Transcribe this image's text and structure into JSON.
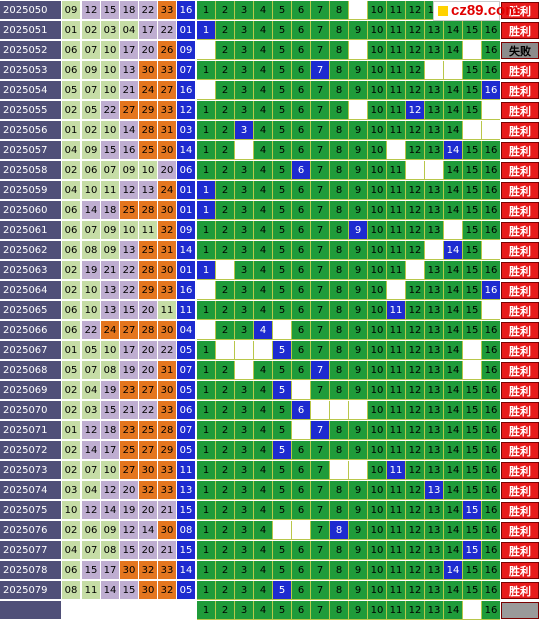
{
  "logo_text": "cz89.com",
  "colors": {
    "period_bg": "#4f4f78",
    "green": "#1f9b3a",
    "hit": "#1d2bd0",
    "win": "#e81b1b",
    "gridline": "#b9c74a"
  },
  "rows": [
    {
      "period": "2025050",
      "reds": [
        9,
        12,
        15,
        18,
        22,
        33
      ],
      "blue": 16,
      "hit": null,
      "blanks": [
        9
      ],
      "result": "胜利"
    },
    {
      "period": "2025051",
      "reds": [
        1,
        2,
        3,
        4,
        17,
        22
      ],
      "blue": 1,
      "hit": 1,
      "blanks": [],
      "result": "胜利"
    },
    {
      "period": "2025052",
      "reds": [
        6,
        7,
        10,
        17,
        20,
        26
      ],
      "blue": 9,
      "hit": null,
      "blanks": [
        1,
        9,
        15
      ],
      "result": "失败"
    },
    {
      "period": "2025053",
      "reds": [
        6,
        9,
        10,
        13,
        30,
        33
      ],
      "blue": 7,
      "hit": 7,
      "blanks": [
        13,
        14
      ],
      "result": "胜利"
    },
    {
      "period": "2025054",
      "reds": [
        5,
        7,
        10,
        21,
        24,
        27
      ],
      "blue": 16,
      "hit": 16,
      "blanks": [
        1
      ],
      "result": "胜利"
    },
    {
      "period": "2025055",
      "reds": [
        2,
        5,
        22,
        27,
        29,
        33
      ],
      "blue": 12,
      "hit": 12,
      "blanks": [
        9,
        16
      ],
      "result": "胜利"
    },
    {
      "period": "2025056",
      "reds": [
        1,
        2,
        10,
        14,
        28,
        31
      ],
      "blue": 3,
      "hit": 3,
      "blanks": [
        15,
        16
      ],
      "result": "胜利"
    },
    {
      "period": "2025057",
      "reds": [
        4,
        9,
        15,
        16,
        25,
        30
      ],
      "blue": 14,
      "hit": 14,
      "blanks": [
        3,
        11
      ],
      "result": "胜利"
    },
    {
      "period": "2025058",
      "reds": [
        2,
        6,
        7,
        9,
        10,
        20
      ],
      "blue": 6,
      "hit": 6,
      "blanks": [
        12,
        13
      ],
      "result": "胜利"
    },
    {
      "period": "2025059",
      "reds": [
        4,
        10,
        11,
        12,
        13,
        24
      ],
      "blue": 1,
      "hit": 1,
      "blanks": [],
      "result": "胜利"
    },
    {
      "period": "2025060",
      "reds": [
        6,
        14,
        18,
        25,
        28,
        30
      ],
      "blue": 1,
      "hit": 1,
      "blanks": [],
      "result": "胜利"
    },
    {
      "period": "2025061",
      "reds": [
        6,
        7,
        9,
        10,
        11,
        32
      ],
      "blue": 9,
      "hit": 9,
      "blanks": [
        14
      ],
      "result": "胜利"
    },
    {
      "period": "2025062",
      "reds": [
        6,
        8,
        9,
        13,
        25,
        31
      ],
      "blue": 14,
      "hit": 14,
      "blanks": [
        13,
        16
      ],
      "result": "胜利"
    },
    {
      "period": "2025063",
      "reds": [
        2,
        19,
        21,
        22,
        28,
        30
      ],
      "blue": 1,
      "hit": 1,
      "blanks": [
        2,
        12
      ],
      "result": "胜利"
    },
    {
      "period": "2025064",
      "reds": [
        2,
        10,
        13,
        22,
        29,
        33
      ],
      "blue": 16,
      "hit": 16,
      "blanks": [
        1,
        11
      ],
      "result": "胜利"
    },
    {
      "period": "2025065",
      "reds": [
        6,
        10,
        13,
        15,
        20,
        11
      ],
      "blue": 11,
      "hit": 11,
      "blanks": [
        16
      ],
      "result": "胜利"
    },
    {
      "period": "2025066",
      "reds": [
        6,
        22,
        24,
        27,
        28,
        30
      ],
      "blue": 4,
      "hit": 4,
      "blanks": [
        1,
        5
      ],
      "result": "胜利"
    },
    {
      "period": "2025067",
      "reds": [
        1,
        5,
        10,
        17,
        20,
        22
      ],
      "blue": 5,
      "hit": 5,
      "blanks": [
        2,
        3,
        4,
        15
      ],
      "result": "胜利"
    },
    {
      "period": "2025068",
      "reds": [
        5,
        7,
        8,
        19,
        20,
        31
      ],
      "blue": 7,
      "hit": 7,
      "blanks": [
        3,
        15
      ],
      "result": "胜利"
    },
    {
      "period": "2025069",
      "reds": [
        2,
        4,
        19,
        23,
        27,
        30
      ],
      "blue": 5,
      "hit": 5,
      "blanks": [
        6
      ],
      "result": "胜利"
    },
    {
      "period": "2025070",
      "reds": [
        2,
        3,
        15,
        21,
        22,
        33
      ],
      "blue": 6,
      "hit": 6,
      "blanks": [
        7,
        8,
        9
      ],
      "result": "胜利"
    },
    {
      "period": "2025071",
      "reds": [
        1,
        12,
        18,
        23,
        25,
        28
      ],
      "blue": 7,
      "hit": 7,
      "blanks": [
        6
      ],
      "result": "胜利"
    },
    {
      "period": "2025072",
      "reds": [
        2,
        14,
        17,
        25,
        27,
        29
      ],
      "blue": 5,
      "hit": 5,
      "blanks": [],
      "result": "胜利"
    },
    {
      "period": "2025073",
      "reds": [
        2,
        7,
        10,
        27,
        30,
        33
      ],
      "blue": 11,
      "hit": 11,
      "blanks": [
        8,
        9
      ],
      "result": "胜利"
    },
    {
      "period": "2025074",
      "reds": [
        3,
        4,
        12,
        20,
        32,
        33
      ],
      "blue": 13,
      "hit": 13,
      "blanks": [],
      "result": "胜利"
    },
    {
      "period": "2025075",
      "reds": [
        10,
        12,
        14,
        19,
        20,
        21
      ],
      "blue": 15,
      "hit": 15,
      "blanks": [],
      "result": "胜利"
    },
    {
      "period": "2025076",
      "reds": [
        2,
        6,
        9,
        12,
        14,
        30
      ],
      "blue": 8,
      "hit": 8,
      "blanks": [
        5,
        6
      ],
      "result": "胜利"
    },
    {
      "period": "2025077",
      "reds": [
        4,
        7,
        8,
        15,
        20,
        21
      ],
      "blue": 15,
      "hit": 15,
      "blanks": [],
      "result": "胜利"
    },
    {
      "period": "2025078",
      "reds": [
        6,
        15,
        17,
        30,
        32,
        33
      ],
      "blue": 14,
      "hit": 14,
      "blanks": [],
      "result": "胜利"
    },
    {
      "period": "2025079",
      "reds": [
        8,
        11,
        14,
        15,
        30,
        32
      ],
      "blue": 5,
      "hit": 5,
      "blanks": [],
      "result": "胜利"
    },
    {
      "period": "",
      "reds": [],
      "blue": null,
      "hit": null,
      "blanks": [
        15
      ],
      "result": ""
    }
  ]
}
